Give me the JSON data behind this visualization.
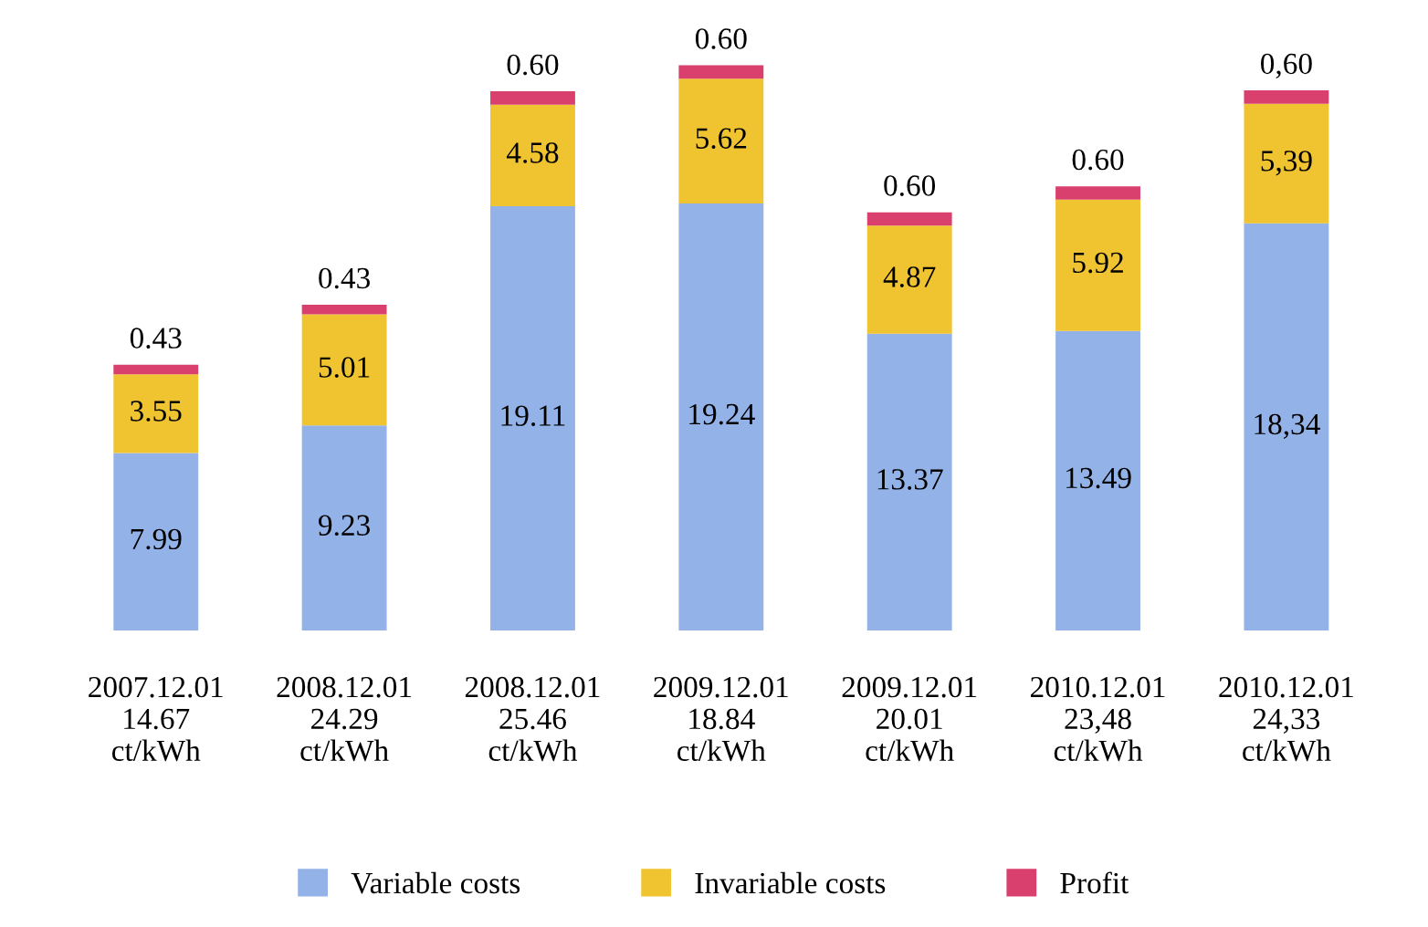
{
  "chart_data": {
    "type": "bar",
    "stacked": true,
    "legend": "bottom",
    "grid": false,
    "categories": [
      "2007.12.01\n14.67\nct/kWh",
      "2008.12.01\n24.29\nct/kWh",
      "2008.12.01\n25.46\nct/kWh",
      "2009.12.01\n18.84\nct/kWh",
      "2009.12.01\n20.01\nct/kWh",
      "2010.12.01\n23,48\nct/kWh",
      "2010.12.01\n24,33\nct/kWh"
    ],
    "series": [
      {
        "name": "Variable costs",
        "color": "#93b3e8",
        "values": [
          7.99,
          9.23,
          19.11,
          19.24,
          13.37,
          13.49,
          18.34
        ],
        "value_labels": [
          "7.99",
          "9.23",
          "19.11",
          "19.24",
          "13.37",
          "13.49",
          "18,34"
        ]
      },
      {
        "name": "Invariable costs",
        "color": "#f0c330",
        "values": [
          3.55,
          5.01,
          4.58,
          5.62,
          4.87,
          5.92,
          5.39
        ],
        "value_labels": [
          "3.55",
          "5.01",
          "4.58",
          "5.62",
          "4.87",
          "5.92",
          "5,39"
        ]
      },
      {
        "name": "Profit",
        "color": "#d9406e",
        "values": [
          0.43,
          0.43,
          0.6,
          0.6,
          0.6,
          0.6,
          0.6
        ],
        "value_labels": [
          "0.43",
          "0.43",
          "0.60",
          "0.60",
          "0.60",
          "0.60",
          "0,60"
        ]
      }
    ]
  }
}
